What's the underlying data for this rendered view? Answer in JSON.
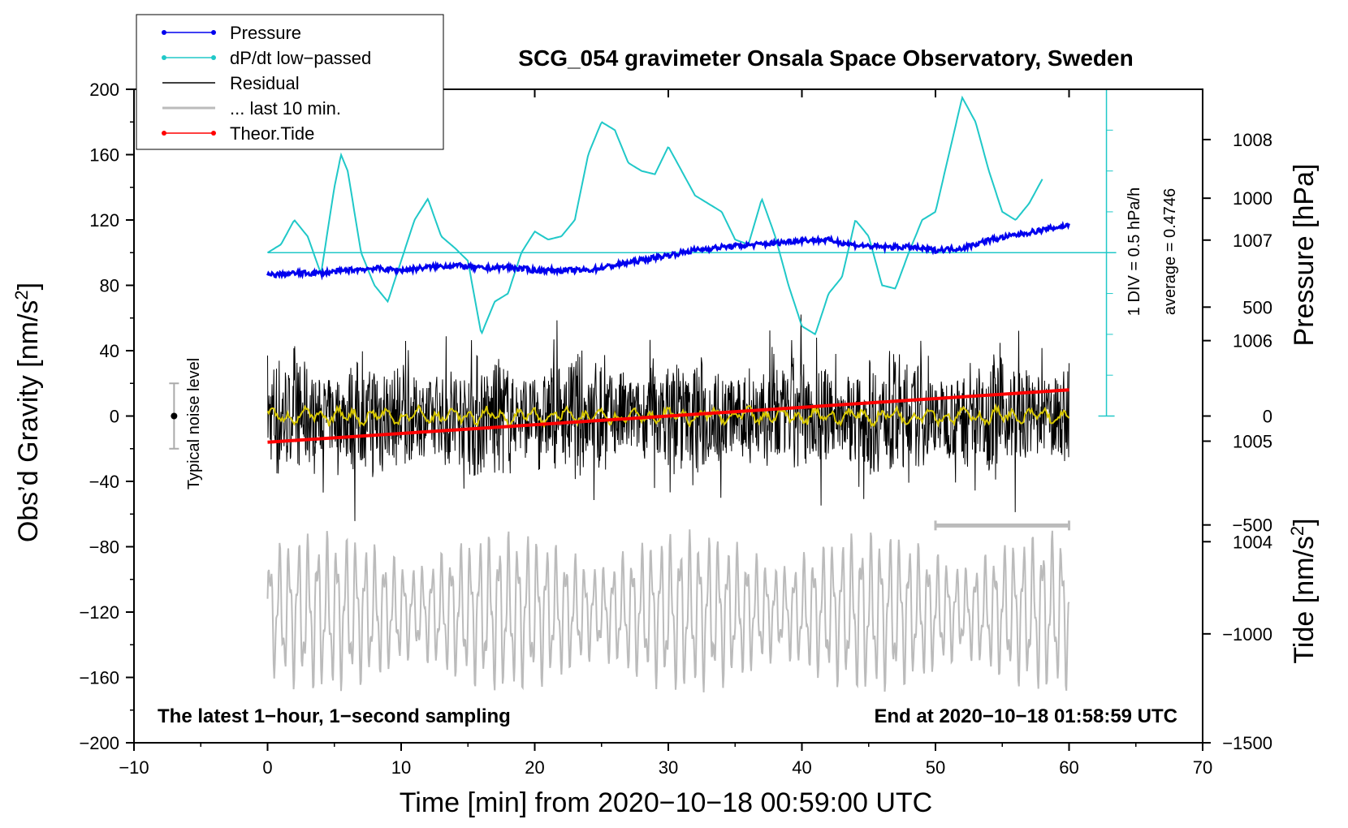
{
  "chart_data": {
    "type": "line",
    "title": "SCG_054 gravimeter Onsala Space Observatory, Sweden",
    "xlabel": "Time [min] from 2020−10−18 00:59:00 UTC",
    "ylabel_left": "Obs’d Gravity [nm/s²]",
    "ylabel_right_top": "Pressure [hPa]",
    "ylabel_right_bottom": "Tide [nm/s²]",
    "xlim": [
      -10,
      70
    ],
    "ylim": [
      -200,
      200
    ],
    "pressure_ylim": [
      1002,
      1008.5
    ],
    "tide_ylim": [
      -1500,
      1500
    ],
    "x_ticks": [
      "−10",
      "0",
      "10",
      "20",
      "30",
      "40",
      "50",
      "60",
      "70"
    ],
    "y_ticks": [
      "200",
      "160",
      "120",
      "80",
      "40",
      "0",
      "−40",
      "−80",
      "−120",
      "−160",
      "−200"
    ],
    "pressure_ticks": [
      "1008",
      "1007",
      "1006",
      "1005",
      "1004"
    ],
    "tide_ticks": [
      "1000",
      "500",
      "0",
      "−500",
      "−1000",
      "−1500"
    ],
    "legend": [
      {
        "label": "Pressure",
        "color": "#0000ee",
        "marker": true
      },
      {
        "label": "dP/dt low−passed",
        "color": "#20c8c8",
        "marker": true
      },
      {
        "label": "Residual",
        "color": "#000000",
        "marker": false
      },
      {
        "label": "... last 10 min.",
        "color": "#bbbbbb",
        "marker": false
      },
      {
        "label": "Theor.Tide",
        "color": "#ff0000",
        "marker": true
      }
    ],
    "annotations": {
      "bottom_left": "The latest 1−hour, 1−second sampling",
      "bottom_right": "End at 2020−10−18 01:58:59 UTC",
      "noise": "Typical noise level",
      "div": "1 DIV = 0.5 hPa/h",
      "average": "average = 0.4746"
    },
    "noise_bar": {
      "x": -7,
      "y": 0,
      "ymin": -20,
      "ymax": 20
    },
    "dpdt_baseline": 100,
    "dpdt_scale_ticks": 8,
    "last10_marker": {
      "x0": 50,
      "x1": 60,
      "y": -67
    },
    "series": [
      {
        "name": "Pressure",
        "axis": "pressure",
        "x": [
          0,
          2,
          4,
          6,
          8,
          10,
          12,
          14,
          16,
          18,
          20,
          22,
          24,
          26,
          28,
          30,
          32,
          34,
          36,
          38,
          40,
          42,
          44,
          46,
          48,
          50,
          52,
          54,
          56,
          58,
          60
        ],
        "values": [
          1006.65,
          1006.67,
          1006.67,
          1006.7,
          1006.72,
          1006.7,
          1006.73,
          1006.75,
          1006.72,
          1006.73,
          1006.7,
          1006.7,
          1006.7,
          1006.75,
          1006.8,
          1006.85,
          1006.9,
          1006.93,
          1006.95,
          1006.97,
          1007.0,
          1007.0,
          1006.95,
          1006.93,
          1006.93,
          1006.9,
          1006.92,
          1007.0,
          1007.05,
          1007.1,
          1007.15
        ]
      },
      {
        "name": "dP/dt low−passed",
        "axis": "gravity",
        "x": [
          0,
          1,
          2,
          3,
          4,
          5,
          5.5,
          6,
          7,
          8,
          9,
          10,
          11,
          12,
          13,
          14,
          15,
          16,
          17,
          18,
          19,
          20,
          21,
          22,
          23,
          24,
          25,
          26,
          27,
          28,
          29,
          30,
          31,
          32,
          33,
          34,
          35,
          36,
          37,
          38,
          39,
          40,
          41,
          42,
          43,
          44,
          45,
          46,
          47,
          48,
          49,
          50,
          51,
          52,
          53,
          54,
          55,
          56,
          57,
          58
        ],
        "values": [
          100,
          105,
          120,
          110,
          87,
          140,
          160,
          150,
          100,
          80,
          70,
          95,
          120,
          133,
          110,
          103,
          95,
          50,
          70,
          75,
          100,
          113,
          108,
          110,
          120,
          160,
          180,
          175,
          155,
          150,
          148,
          165,
          150,
          135,
          130,
          125,
          108,
          105,
          133,
          110,
          80,
          55,
          50,
          75,
          85,
          120,
          110,
          80,
          78,
          100,
          120,
          125,
          160,
          195,
          180,
          150,
          125,
          120,
          130,
          145
        ]
      },
      {
        "name": "Residual",
        "axis": "gravity",
        "x_range": [
          0,
          60
        ],
        "typical_amplitude": 40,
        "peak_amplitude": 80
      },
      {
        "name": "... last 10 min.",
        "axis": "gravity",
        "x_range": [
          0,
          60
        ],
        "center": -120,
        "typical_amplitude": 35,
        "peak_amplitude": 90
      },
      {
        "name": "Theor.Tide",
        "axis": "tide",
        "x": [
          0,
          60
        ],
        "values": [
          -120,
          120
        ]
      }
    ]
  }
}
